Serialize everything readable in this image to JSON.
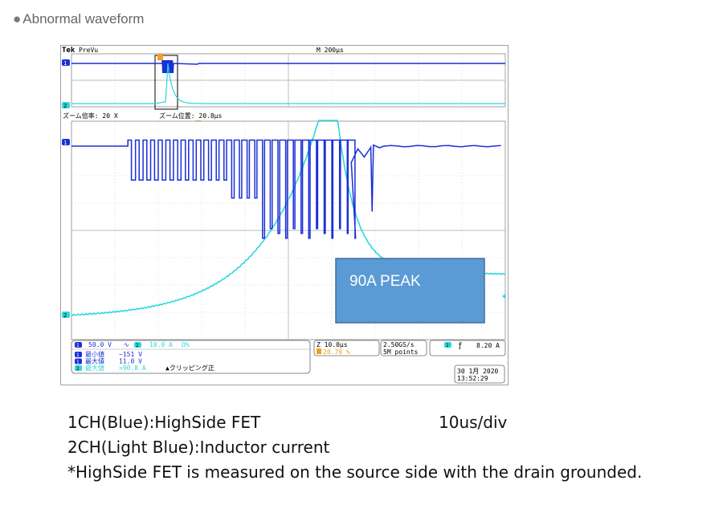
{
  "heading": {
    "bullet": "●",
    "text": "Abnormal waveform"
  },
  "scope": {
    "brand": "Tek",
    "mode": "PreVu",
    "timebase": "M 200µs",
    "zoom_factor": "ズーム倍率: 20 X",
    "zoom_position": "ズーム位置: 20.8µs",
    "ch1_marker": "1",
    "ch2_marker": "2",
    "trigger_marker": "T",
    "ch1_setting": "50.0 V",
    "bw_symbol": "∿",
    "ch2_setting": "10.0 A",
    "ch2_unit": "Ω%",
    "meas": [
      {
        "ch": "1",
        "label": "最小値",
        "value": "−151 V"
      },
      {
        "ch": "1",
        "label": "最大値",
        "value": "11.0 V"
      },
      {
        "ch": "2",
        "label": "最大値",
        "value": ">90.8 A",
        "note": "▲クリッピング正"
      }
    ],
    "horiz_scale": "Z 10.0µs",
    "horiz_pos": "20.70 %",
    "sample_rate": "2.50GS/s",
    "record_length": "5M points",
    "trig_ch": "2",
    "trig_slope": "ƒ",
    "trig_level": "8.20 A",
    "date": "30 1月  2020",
    "time": "13:52:29",
    "annotation": "90A  PEAK",
    "colors": {
      "ch1": "#1a2fd6",
      "ch2": "#2ad8dc",
      "annotation_fill": "#5b9bd5",
      "annotation_border": "#41719c",
      "grid": "#b8b8b8",
      "trigger": "#f0a020"
    }
  },
  "captions": {
    "line1": "1CH(Blue):HighSide FET",
    "line1_right": "10us/div",
    "line2": "2CH(Light Blue):Inductor current",
    "line3": "*HighSide FET is measured on the source side with the drain grounded."
  },
  "chart_data": {
    "type": "line",
    "x_unit": "µs",
    "xlim": [
      0,
      100
    ],
    "series": [
      {
        "name": "1CH(Blue):HighSide FET",
        "y_unit": "V",
        "y_per_div": 50,
        "baseline": 0,
        "switch_high": 11.0,
        "switch_low": -151,
        "switching_start_us": 13,
        "switching_end_us": 64,
        "settled_after_us": 72
      },
      {
        "name": "2CH(Light Blue):Inductor current",
        "y_unit": "A",
        "y_per_div": 10,
        "peak": 90.8,
        "peak_time_us": 60
      }
    ]
  }
}
